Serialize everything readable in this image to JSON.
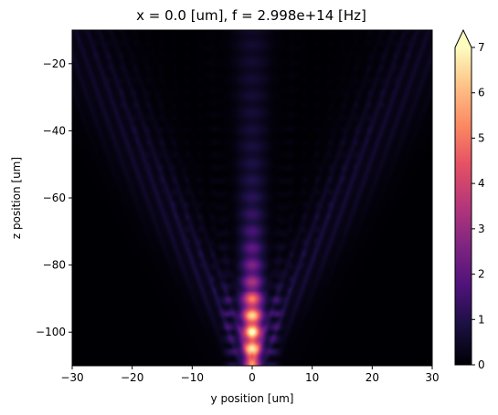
{
  "chart_data": {
    "type": "heatmap",
    "title": "x = 0.0 [um], f = 2.998e+14 [Hz]",
    "xlabel": "y position [um]",
    "ylabel": "z position [um]",
    "xlim": [
      -30,
      30
    ],
    "ylim": [
      -110,
      -10
    ],
    "xticks": [
      -30,
      -20,
      -10,
      0,
      10,
      20,
      30
    ],
    "xtick_labels": [
      "−30",
      "−20",
      "−10",
      "0",
      "10",
      "20",
      "30"
    ],
    "yticks": [
      -20,
      -40,
      -60,
      -80,
      -100
    ],
    "ytick_labels": [
      "−20",
      "−40",
      "−60",
      "−80",
      "−100"
    ],
    "colorbar": {
      "range": [
        0,
        7
      ],
      "ticks": [
        0,
        1,
        2,
        3,
        4,
        5,
        6,
        7
      ],
      "tick_labels": [
        "0",
        "1",
        "2",
        "3",
        "4",
        "5",
        "6",
        "7"
      ],
      "extend": "max",
      "colormap": "magma"
    },
    "field_description": {
      "central_beam": {
        "y": 0,
        "peak_value": 7,
        "peak_z": -100,
        "value_at_z_minus_20": 0.6
      },
      "v_arms": {
        "apex_z": -110,
        "spread_um_per_um": 0.29,
        "peak_value": 0.9
      }
    },
    "grid": false
  }
}
